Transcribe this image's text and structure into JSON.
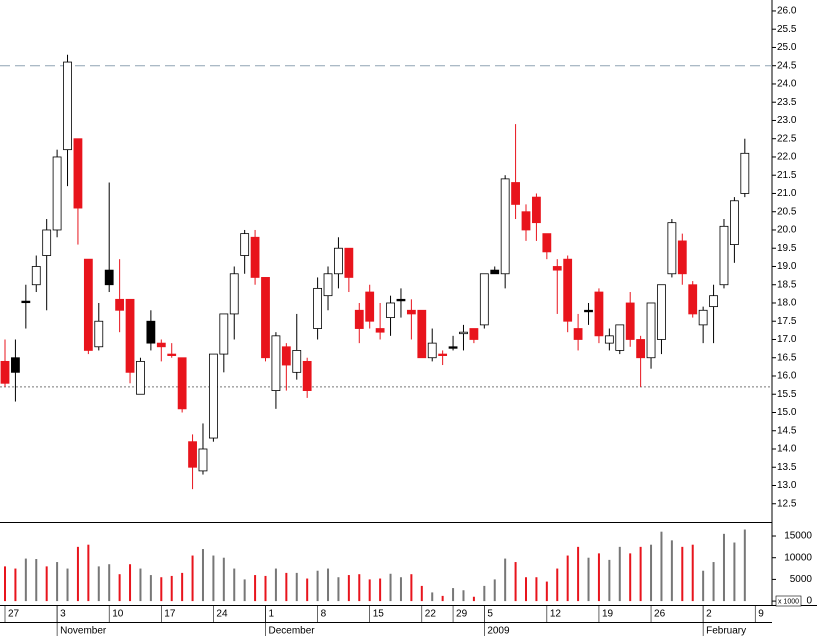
{
  "chart_data": [
    {
      "type": "candlestick",
      "categories": [
        "27",
        null,
        null,
        null,
        null,
        "3",
        null,
        null,
        null,
        null,
        "10",
        null,
        null,
        null,
        null,
        "17",
        null,
        null,
        null,
        null,
        "24",
        null,
        null,
        null,
        null,
        "1",
        null,
        null,
        null,
        null,
        "8",
        null,
        null,
        null,
        null,
        "15",
        null,
        null,
        null,
        null,
        "22",
        null,
        null,
        "29",
        null,
        null,
        "5",
        null,
        null,
        null,
        null,
        null,
        "12",
        null,
        null,
        null,
        null,
        "19",
        null,
        null,
        null,
        null,
        "26",
        null,
        null,
        null,
        null,
        "2",
        null,
        null,
        null,
        null,
        "9"
      ],
      "months": [
        null,
        null,
        null,
        null,
        null,
        "November",
        null,
        null,
        null,
        null,
        null,
        null,
        null,
        null,
        null,
        null,
        null,
        null,
        null,
        null,
        null,
        null,
        null,
        null,
        null,
        "December",
        null,
        null,
        null,
        null,
        null,
        null,
        null,
        null,
        null,
        null,
        null,
        null,
        null,
        null,
        null,
        null,
        null,
        null,
        null,
        null,
        "2009",
        null,
        null,
        null,
        null,
        null,
        null,
        null,
        null,
        null,
        null,
        null,
        null,
        null,
        null,
        null,
        null,
        null,
        null,
        null,
        null,
        "February",
        null,
        null,
        null,
        null,
        null
      ],
      "open": [
        16.4,
        16.1,
        18.05,
        18.5,
        19.3,
        20.0,
        22.2,
        22.5,
        19.2,
        16.8,
        18.5,
        18.1,
        18.1,
        15.5,
        16.9,
        16.9,
        16.6,
        16.5,
        14.2,
        13.4,
        14.3,
        16.6,
        17.7,
        19.3,
        19.8,
        18.7,
        15.6,
        16.8,
        16.1,
        16.4,
        17.3,
        18.2,
        18.8,
        19.5,
        17.8,
        18.3,
        17.3,
        17.6,
        18.1,
        17.8,
        17.8,
        16.5,
        16.6,
        16.8,
        17.2,
        17.3,
        17.4,
        18.8,
        18.8,
        21.3,
        20.5,
        20.9,
        19.9,
        19.0,
        19.2,
        17.3,
        17.8,
        18.3,
        16.9,
        16.7,
        18.0,
        17.0,
        16.5,
        17.0,
        18.8,
        19.7,
        18.5,
        17.4,
        17.9,
        18.5,
        19.6,
        21.0,
        null
      ],
      "high": [
        17.0,
        17.0,
        18.5,
        19.3,
        20.3,
        22.2,
        24.8,
        22.5,
        19.2,
        18.0,
        21.3,
        19.2,
        18.1,
        16.5,
        17.8,
        17.0,
        16.9,
        16.5,
        14.4,
        14.7,
        16.6,
        17.7,
        19.0,
        20.0,
        20.0,
        18.7,
        17.2,
        16.9,
        17.7,
        16.5,
        18.7,
        19.0,
        19.8,
        19.5,
        18.0,
        18.5,
        18.0,
        18.2,
        18.4,
        18.1,
        17.8,
        17.3,
        16.7,
        17.1,
        17.4,
        17.3,
        18.8,
        19.0,
        21.5,
        22.9,
        20.7,
        21.0,
        19.9,
        19.2,
        19.3,
        17.7,
        18.0,
        18.4,
        17.3,
        17.4,
        18.3,
        17.1,
        18.0,
        18.5,
        20.3,
        19.9,
        18.6,
        17.9,
        18.5,
        20.3,
        20.9,
        22.5,
        null
      ],
      "low": [
        15.7,
        15.3,
        17.3,
        18.3,
        17.8,
        19.8,
        21.2,
        19.6,
        16.6,
        16.7,
        18.3,
        17.2,
        15.8,
        15.5,
        16.7,
        16.4,
        16.5,
        15.0,
        12.9,
        13.3,
        14.2,
        16.1,
        17.0,
        18.8,
        18.5,
        16.4,
        15.1,
        15.6,
        15.9,
        15.4,
        17.0,
        17.8,
        18.4,
        18.3,
        16.9,
        17.3,
        17.0,
        17.1,
        17.6,
        17.0,
        16.5,
        16.4,
        16.3,
        16.7,
        16.7,
        16.9,
        17.3,
        18.8,
        18.4,
        20.3,
        19.7,
        19.7,
        19.2,
        17.7,
        17.2,
        16.7,
        17.4,
        16.9,
        16.7,
        16.6,
        16.8,
        15.7,
        16.2,
        16.6,
        18.7,
        18.5,
        17.6,
        16.9,
        16.9,
        18.4,
        19.1,
        20.9,
        null
      ],
      "close": [
        15.8,
        16.5,
        18.05,
        19.0,
        20.0,
        22.0,
        24.6,
        20.6,
        16.7,
        17.5,
        18.9,
        17.8,
        16.1,
        16.4,
        17.5,
        16.8,
        16.6,
        15.1,
        13.5,
        14.0,
        16.6,
        17.7,
        18.8,
        19.9,
        18.7,
        16.5,
        17.1,
        16.3,
        16.7,
        15.6,
        18.4,
        18.8,
        19.5,
        18.7,
        17.3,
        17.5,
        17.2,
        18.0,
        18.1,
        17.7,
        16.5,
        16.9,
        16.6,
        16.8,
        17.2,
        17.0,
        18.8,
        18.9,
        21.4,
        20.7,
        20.0,
        20.2,
        19.4,
        18.9,
        17.5,
        17.0,
        17.8,
        17.1,
        17.1,
        17.4,
        17.0,
        16.5,
        18.0,
        18.5,
        20.2,
        18.8,
        17.7,
        17.8,
        18.2,
        20.1,
        20.8,
        22.1,
        null
      ],
      "colors": [
        "#e8141c",
        "#000000",
        "#000000",
        "#ffffff",
        "#ffffff",
        "#ffffff",
        "#ffffff",
        "#e8141c",
        "#e8141c",
        "#ffffff",
        "#000000",
        "#e8141c",
        "#e8141c",
        "#ffffff",
        "#000000",
        "#e8141c",
        "#e8141c",
        "#e8141c",
        "#e8141c",
        "#ffffff",
        "#ffffff",
        "#ffffff",
        "#ffffff",
        "#ffffff",
        "#e8141c",
        "#e8141c",
        "#ffffff",
        "#e8141c",
        "#ffffff",
        "#e8141c",
        "#ffffff",
        "#ffffff",
        "#ffffff",
        "#e8141c",
        "#e8141c",
        "#e8141c",
        "#e8141c",
        "#ffffff",
        "#000000",
        "#e8141c",
        "#e8141c",
        "#ffffff",
        "#e8141c",
        "#000000",
        "#ffffff",
        "#e8141c",
        "#ffffff",
        "#000000",
        "#ffffff",
        "#e8141c",
        "#e8141c",
        "#e8141c",
        "#e8141c",
        "#e8141c",
        "#e8141c",
        "#e8141c",
        "#000000",
        "#e8141c",
        "#ffffff",
        "#ffffff",
        "#e8141c",
        "#e8141c",
        "#ffffff",
        "#ffffff",
        "#ffffff",
        "#e8141c",
        "#e8141c",
        "#ffffff",
        "#ffffff",
        "#ffffff",
        "#ffffff",
        "#ffffff",
        null
      ],
      "ylim": [
        12.0,
        26.3
      ],
      "yticks": [
        12.5,
        {
          "value": 13.0,
          "label": "13.0"
        },
        13.5,
        {
          "value": 14.0,
          "label": "14.0"
        },
        14.5,
        {
          "value": 15.0,
          "label": "15.0"
        },
        15.5,
        {
          "value": 16.0,
          "label": "16.0"
        },
        16.5,
        {
          "value": 17.0,
          "label": "17.0"
        },
        17.5,
        {
          "value": 18.0,
          "label": "18.0"
        },
        18.5,
        {
          "value": 19.0,
          "label": "19.0"
        },
        19.5,
        {
          "value": 20.0,
          "label": "20.0"
        },
        20.5,
        {
          "value": 21.0,
          "label": "21.0"
        },
        21.5,
        {
          "value": 22.0,
          "label": "22.0"
        },
        22.5,
        {
          "value": 23.0,
          "label": "23.0"
        },
        23.5,
        {
          "value": 24.0,
          "label": "24.0"
        },
        24.5,
        {
          "value": 25.0,
          "label": "25.0"
        },
        25.5,
        {
          "value": 26.0,
          "label": "26.0"
        }
      ],
      "hlines": [
        {
          "value": 24.5,
          "color": "#8fa3b3",
          "dash": "10,5"
        },
        {
          "value": 15.7,
          "color": "#777777",
          "dash": "2,2"
        }
      ]
    },
    {
      "type": "bar",
      "values": [
        8000,
        7500,
        9800,
        9700,
        8000,
        9000,
        7500,
        12500,
        13000,
        8000,
        8500,
        6200,
        8500,
        7500,
        6000,
        5500,
        5800,
        6500,
        10500,
        12000,
        10500,
        10000,
        7500,
        5000,
        6000,
        5800,
        7500,
        6500,
        6500,
        5200,
        7000,
        7500,
        5500,
        6000,
        6200,
        5000,
        5200,
        6300,
        5500,
        6200,
        3500,
        2000,
        1200,
        3000,
        2500,
        1000,
        3500,
        5000,
        9800,
        9000,
        5500,
        5500,
        4500,
        7500,
        10500,
        12500,
        10000,
        11000,
        9500,
        12500,
        11000,
        12500,
        13000,
        16000,
        14000,
        12500,
        13000,
        7000,
        9000,
        15500,
        13500,
        16500,
        null
      ],
      "colors": [
        "#e8141c",
        "#e8141c",
        "#777777",
        "#777777",
        "#e8141c",
        "#777777",
        "#777777",
        "#e8141c",
        "#e8141c",
        "#777777",
        "#777777",
        "#e8141c",
        "#e8141c",
        "#777777",
        "#777777",
        "#e8141c",
        "#e8141c",
        "#e8141c",
        "#e8141c",
        "#777777",
        "#777777",
        "#777777",
        "#777777",
        "#777777",
        "#e8141c",
        "#e8141c",
        "#777777",
        "#e8141c",
        "#777777",
        "#e8141c",
        "#777777",
        "#777777",
        "#777777",
        "#e8141c",
        "#e8141c",
        "#e8141c",
        "#e8141c",
        "#777777",
        "#777777",
        "#e8141c",
        "#e8141c",
        "#777777",
        "#e8141c",
        "#777777",
        "#777777",
        "#e8141c",
        "#777777",
        "#777777",
        "#777777",
        "#e8141c",
        "#e8141c",
        "#e8141c",
        "#e8141c",
        "#e8141c",
        "#e8141c",
        "#e8141c",
        "#777777",
        "#e8141c",
        "#777777",
        "#777777",
        "#e8141c",
        "#e8141c",
        "#777777",
        "#777777",
        "#777777",
        "#e8141c",
        "#e8141c",
        "#777777",
        "#777777",
        "#777777",
        "#777777",
        "#777777",
        null
      ],
      "ylim": [
        -900,
        18000
      ],
      "yticks": [
        0,
        5000,
        10000,
        15000
      ],
      "unit_note": "x 1000"
    }
  ]
}
